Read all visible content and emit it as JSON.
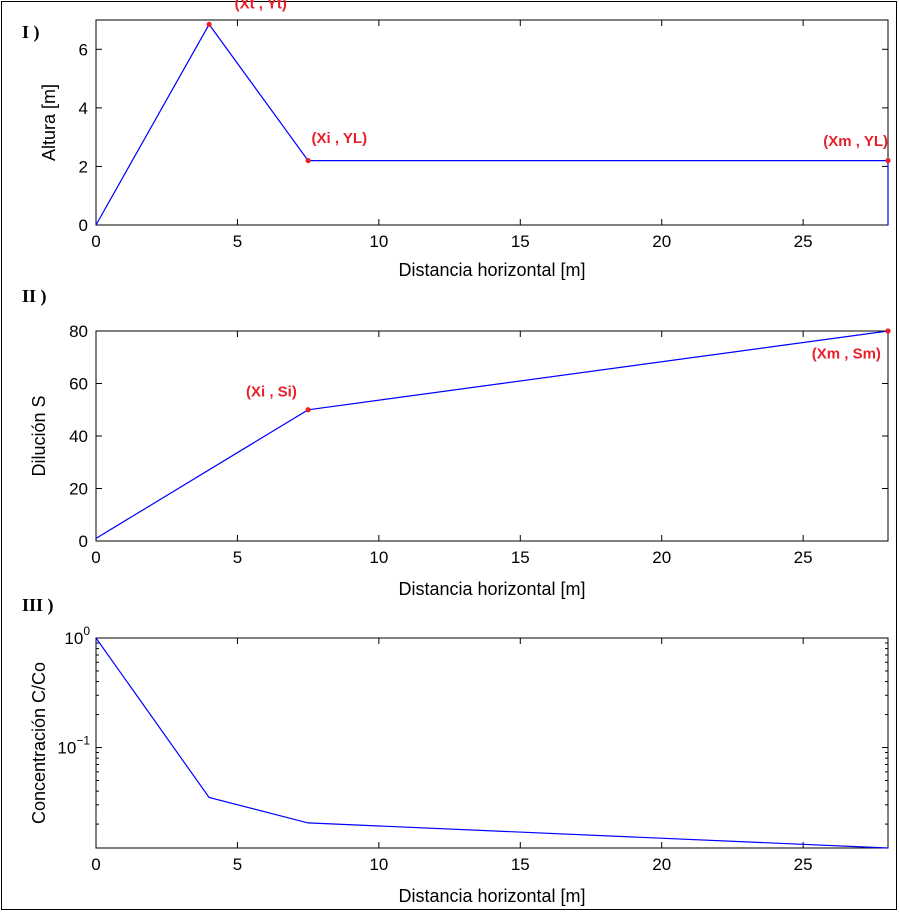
{
  "chart_data": [
    {
      "panel": "I )",
      "type": "line",
      "scale_y": "linear",
      "xlabel": "Distancia horizontal [m]",
      "ylabel": "Altura [m]",
      "xlim": [
        0,
        28
      ],
      "ylim": [
        0,
        7
      ],
      "xticks": [
        0,
        5,
        10,
        15,
        20,
        25
      ],
      "yticks": [
        0,
        2,
        4,
        6
      ],
      "series": [
        {
          "color": "#0000ff",
          "x": [
            0,
            4,
            7.5,
            28,
            28
          ],
          "y": [
            0,
            6.85,
            2.2,
            2.2,
            0
          ]
        }
      ],
      "points": [
        {
          "x": 4,
          "y": 6.85,
          "label": "(Xt , Yt)",
          "anchor": "start",
          "dx": 0.9,
          "dy": 0.55
        },
        {
          "x": 7.5,
          "y": 2.2,
          "label": "(Xi , YL)",
          "anchor": "start",
          "dx": 0.12,
          "dy": 0.6
        },
        {
          "x": 28,
          "y": 2.2,
          "label": "(Xm , YL)",
          "anchor": "end",
          "dx": 0,
          "dy": 0.5
        }
      ],
      "grid": false
    },
    {
      "panel": "II )",
      "type": "line",
      "scale_y": "linear",
      "xlabel": "Distancia horizontal [m]",
      "ylabel": "Dilución S",
      "xlim": [
        0,
        28
      ],
      "ylim": [
        0,
        80
      ],
      "xticks": [
        0,
        5,
        10,
        15,
        20,
        25
      ],
      "yticks": [
        0,
        20,
        40,
        60,
        80
      ],
      "series": [
        {
          "color": "#0000ff",
          "x": [
            0,
            7.5,
            28
          ],
          "y": [
            1,
            50,
            80
          ]
        }
      ],
      "points": [
        {
          "x": 7.5,
          "y": 50,
          "label": "(Xi , Si)",
          "anchor": "end",
          "dx": -0.4,
          "dy": 5
        },
        {
          "x": 28,
          "y": 80,
          "label": "(Xm , Sm)",
          "anchor": "end",
          "dx": -0.25,
          "dy": -10.5
        }
      ],
      "grid": false
    },
    {
      "panel": "III )",
      "type": "line",
      "scale_y": "log",
      "xlabel": "Distancia horizontal [m]",
      "ylabel": "Concentración C/Co",
      "xlim": [
        0,
        28
      ],
      "ylim": [
        0.0121,
        1
      ],
      "xticks": [
        0,
        5,
        10,
        15,
        20,
        25
      ],
      "ytick_labels": [
        {
          "value": 1,
          "label": "10",
          "exp": "0"
        },
        {
          "value": 0.1,
          "label": "10",
          "exp": "−1"
        }
      ],
      "series": [
        {
          "color": "#0000ff",
          "x": [
            0,
            4,
            7.5,
            28
          ],
          "y": [
            1,
            0.035,
            0.0205,
            0.0121
          ]
        }
      ],
      "points": [],
      "grid": false
    }
  ]
}
